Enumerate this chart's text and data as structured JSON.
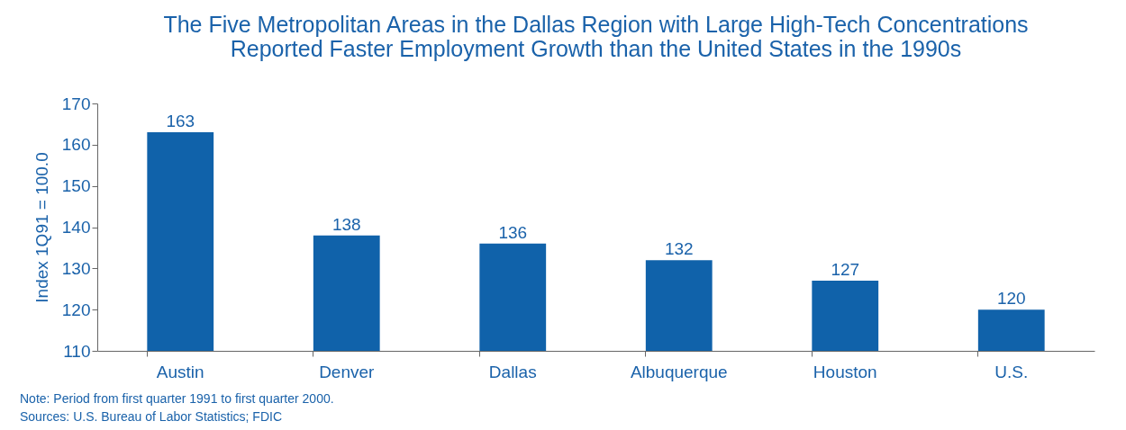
{
  "chart_data": {
    "type": "bar",
    "title": "The Five Metropolitan Areas in the Dallas Region with Large High-Tech Concentrations Reported Faster Employment Growth than the United States in the 1990s",
    "ylabel": "Index 1Q91 = 100.0",
    "categories": [
      "Austin",
      "Denver",
      "Dallas",
      "Albuquerque",
      "Houston",
      "U.S."
    ],
    "values": [
      163,
      138,
      136,
      132,
      127,
      120
    ],
    "color": "#1062aa",
    "ylim": [
      110,
      170
    ],
    "yticks": [
      110,
      120,
      130,
      140,
      150,
      160,
      170
    ],
    "grid": false,
    "data_labels": true,
    "annotations": [
      "Note: Period from first quarter 1991 to first quarter 2000.",
      "Sources: U.S. Bureau of Labor Statistics; FDIC"
    ]
  }
}
